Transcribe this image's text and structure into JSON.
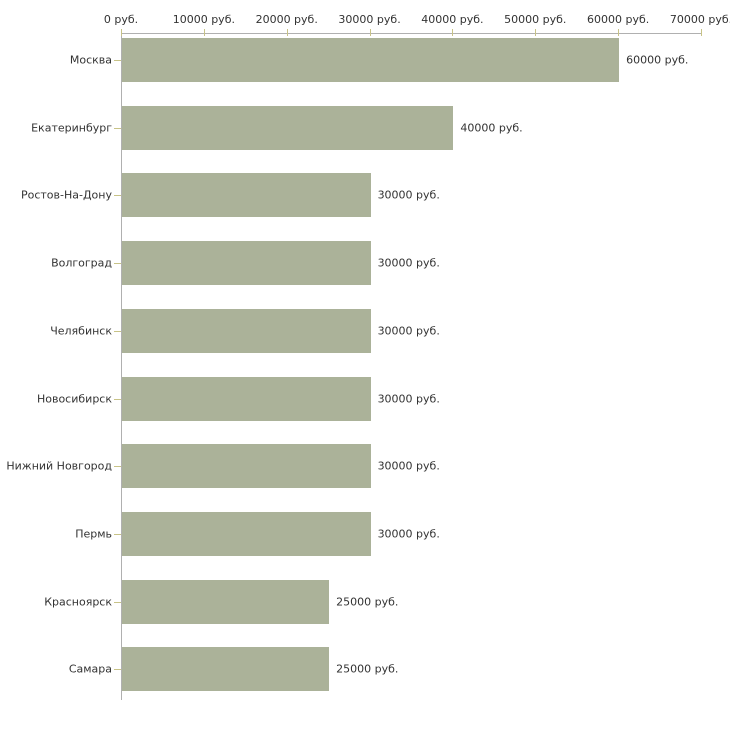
{
  "chart_data": {
    "type": "bar",
    "orientation": "horizontal",
    "title": "",
    "xlabel": "",
    "ylabel": "",
    "unit": "руб.",
    "categories": [
      "Москва",
      "Екатеринбург",
      "Ростов-На-Дону",
      "Волгоград",
      "Челябинск",
      "Новосибирск",
      "Нижний Новгород",
      "Пермь",
      "Красноярск",
      "Самара"
    ],
    "values": [
      60000,
      40000,
      30000,
      30000,
      30000,
      30000,
      30000,
      30000,
      25000,
      25000
    ],
    "bar_labels": [
      "60000 руб.",
      "40000 руб.",
      "30000 руб.",
      "30000 руб.",
      "30000 руб.",
      "30000 руб.",
      "30000 руб.",
      "30000 руб.",
      "25000 руб.",
      "25000 руб."
    ],
    "xlim": [
      0,
      70000
    ],
    "x_ticks": [
      0,
      10000,
      20000,
      30000,
      40000,
      50000,
      60000,
      70000
    ],
    "x_tick_labels": [
      "0 руб.",
      "10000 руб.",
      "20000 руб.",
      "30000 руб.",
      "40000 руб.",
      "50000 руб.",
      "60000 руб.",
      "70000 руб."
    ],
    "legend": null,
    "grid": false,
    "colors": {
      "bar": "#abb299",
      "axis": "#b0b0b0",
      "tick_mark": "#c8c387",
      "text": "#333333",
      "background": "#ffffff"
    }
  }
}
